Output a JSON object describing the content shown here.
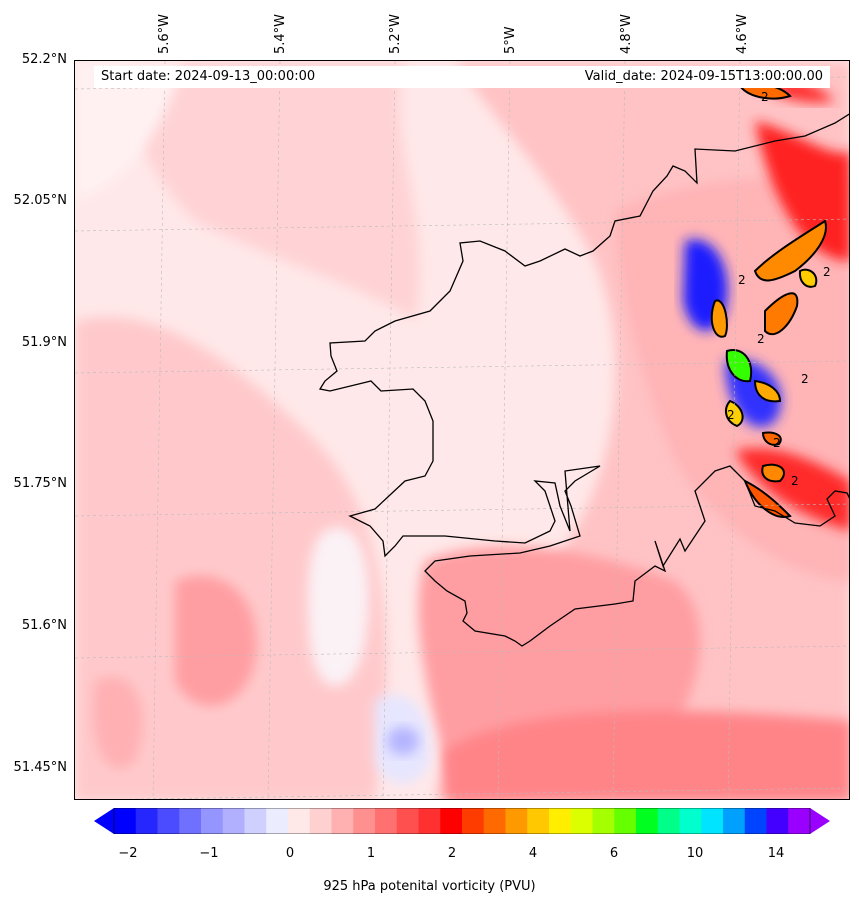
{
  "header": {
    "start_date": "Start date: 2024-09-13_00:00:00",
    "valid_date": "Valid_date: 2024-09-15T13:00:00.00"
  },
  "map": {
    "variable": "925 hPa potential vorticity",
    "contour_label": "2",
    "lat_labels": [
      "52.2°N",
      "52.05°N",
      "51.9°N",
      "51.75°N",
      "51.6°N",
      "51.45°N"
    ],
    "lon_labels": [
      "5.6°W",
      "5.4°W",
      "5.2°W",
      "5°W",
      "4.8°W",
      "4.6°W"
    ]
  },
  "colorbar": {
    "label": "925 hPa potenital vorticity (PVU)",
    "ticks": [
      "−2",
      "−1",
      "0",
      "1",
      "2",
      "4",
      "6",
      "10",
      "14"
    ],
    "colors": [
      "#0000ff",
      "#2626ff",
      "#4b4bff",
      "#7070ff",
      "#9595ff",
      "#b0b0ff",
      "#d0d0ff",
      "#ececff",
      "#ffe8e8",
      "#ffd0d0",
      "#ffb0b0",
      "#ff9090",
      "#ff7070",
      "#ff5050",
      "#ff3030",
      "#ff0000",
      "#ff3c00",
      "#ff6a00",
      "#ff9900",
      "#ffc800",
      "#ffee00",
      "#dcff00",
      "#a4ff00",
      "#66ff00",
      "#00ff20",
      "#00ff88",
      "#00ffcc",
      "#00e4ff",
      "#00a0ff",
      "#0044ff",
      "#4400ff",
      "#9900ff"
    ]
  }
}
